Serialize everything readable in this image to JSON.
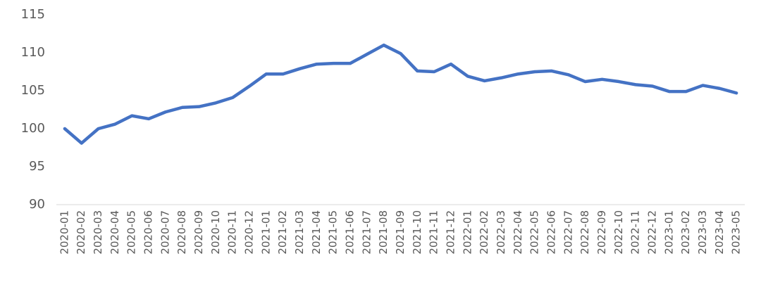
{
  "chart_data": {
    "type": "line",
    "categories": [
      "2020-01",
      "2020-02",
      "2020-03",
      "2020-04",
      "2020-05",
      "2020-06",
      "2020-07",
      "2020-08",
      "2020-09",
      "2020-10",
      "2020-11",
      "2020-12",
      "2021-01",
      "2021-02",
      "2021-03",
      "2021-04",
      "2021-05",
      "2021-06",
      "2021-07",
      "2021-08",
      "2021-09",
      "2021-10",
      "2021-11",
      "2021-12",
      "2022-01",
      "2022-02",
      "2022-03",
      "2022-04",
      "2022-05",
      "2022-06",
      "2022-07",
      "2022-08",
      "2022-09",
      "2022-10",
      "2022-11",
      "2022-12",
      "2023-01",
      "2023-02",
      "2023-03",
      "2023-04",
      "2023-05"
    ],
    "values": [
      100,
      98.1,
      100,
      100.6,
      101.7,
      101.3,
      102.2,
      102.8,
      102.9,
      103.4,
      104.1,
      105.6,
      107.2,
      107.2,
      107.9,
      108.5,
      108.6,
      108.6,
      109.8,
      111,
      109.9,
      107.6,
      107.5,
      108.5,
      106.9,
      106.3,
      106.7,
      107.2,
      107.5,
      107.6,
      107.1,
      106.2,
      106.5,
      106.2,
      105.8,
      105.6,
      104.9,
      104.9,
      105.7,
      105.3,
      104.7
    ],
    "color": "#4472c4",
    "ylim": [
      90,
      115
    ],
    "yticks": [
      90,
      95,
      100,
      105,
      110,
      115
    ],
    "grid": false
  }
}
